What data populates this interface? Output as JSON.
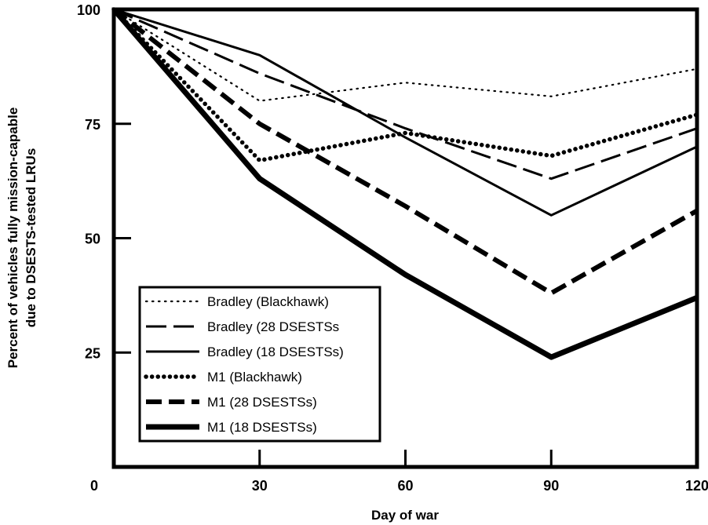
{
  "chart_data": {
    "type": "line",
    "xlabel": "Day of war",
    "ylabel": [
      "Percent of vehicles fully mission-capable",
      "due to DSESTS-tested LRUs"
    ],
    "xlim": [
      0,
      120
    ],
    "ylim": [
      0,
      100
    ],
    "x_ticks": [
      0,
      30,
      60,
      90,
      120
    ],
    "y_ticks": [
      0,
      25,
      50,
      75,
      100
    ],
    "x_tick_labels": [
      "0",
      "30",
      "60",
      "90",
      "120"
    ],
    "y_tick_labels": [
      "0",
      "25",
      "50",
      "75",
      "100"
    ],
    "grid": false,
    "legend_position": "lower-left",
    "x": [
      0,
      30,
      60,
      90,
      120
    ],
    "series": [
      {
        "name": "Bradley (Blackhawk)",
        "values": [
          100,
          80,
          84,
          81,
          87
        ],
        "style": "dotted-thin"
      },
      {
        "name": "Bradley (28 DSESTSs",
        "values": [
          100,
          86,
          74,
          63,
          74
        ],
        "style": "dashed-thin"
      },
      {
        "name": "Bradley (18 DSESTSs)",
        "values": [
          100,
          90,
          72,
          55,
          70
        ],
        "style": "solid-thin"
      },
      {
        "name": "M1 (Blackhawk)",
        "values": [
          100,
          67,
          73,
          68,
          77
        ],
        "style": "dotted-thick"
      },
      {
        "name": "M1 (28 DSESTSs)",
        "values": [
          100,
          75,
          57,
          38,
          56
        ],
        "style": "dashed-thick"
      },
      {
        "name": "M1 (18 DSESTSs)",
        "values": [
          100,
          63,
          42,
          24,
          37
        ],
        "style": "solid-thick"
      }
    ],
    "line_color": "#000000"
  }
}
